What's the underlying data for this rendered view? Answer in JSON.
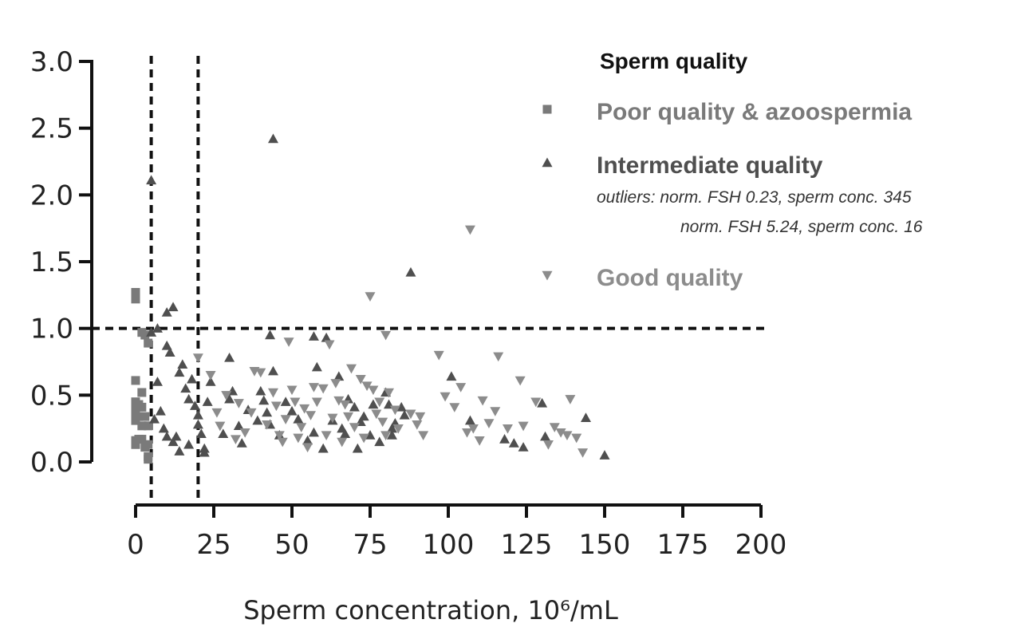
{
  "chart_data": {
    "type": "scatter",
    "title": "",
    "xlabel": "Sperm concentration, 10⁶/mL",
    "ylabel": "",
    "xlim": [
      0,
      200
    ],
    "ylim": [
      0,
      3.0
    ],
    "x_ticks": [
      "0",
      "25",
      "50",
      "75",
      "100",
      "125",
      "150",
      "175",
      "200"
    ],
    "y_ticks": [
      "0.0",
      "0.5",
      "1.0",
      "1.5",
      "2.0",
      "2.5",
      "3.0"
    ],
    "reference_lines": [
      {
        "axis": "x",
        "value": 5,
        "style": "dashed"
      },
      {
        "axis": "x",
        "value": 20,
        "style": "dashed"
      },
      {
        "axis": "y",
        "value": 1.0,
        "style": "dashed"
      }
    ],
    "legend": {
      "title": "Sperm quality",
      "position": "top-right",
      "notes": [
        "outliers: norm. FSH 0.23, sperm conc. 345",
        "norm. FSH 5.24, sperm conc. 16"
      ]
    },
    "series": [
      {
        "name": "Poor quality & azoospermia",
        "marker": "square",
        "color": "#7a7a7a",
        "points": [
          [
            0,
            1.27
          ],
          [
            0,
            1.22
          ],
          [
            0,
            0.61
          ],
          [
            0,
            0.45
          ],
          [
            0,
            0.41
          ],
          [
            0,
            0.36
          ],
          [
            0,
            0.31
          ],
          [
            0,
            0.16
          ],
          [
            0,
            0.13
          ],
          [
            1,
            0.43
          ],
          [
            1,
            0.34
          ],
          [
            1,
            0.17
          ],
          [
            2,
            0.97
          ],
          [
            2,
            0.52
          ],
          [
            2,
            0.41
          ],
          [
            2,
            0.27
          ],
          [
            2,
            0.17
          ],
          [
            3,
            0.95
          ],
          [
            3,
            0.34
          ],
          [
            3,
            0.11
          ],
          [
            4,
            0.89
          ],
          [
            4,
            0.27
          ],
          [
            4,
            0.13
          ],
          [
            4,
            0.04
          ],
          [
            4,
            0.02
          ]
        ]
      },
      {
        "name": "Intermediate quality",
        "marker": "triangle-up",
        "color": "#4f4f4f",
        "points": [
          [
            5,
            2.11
          ],
          [
            44,
            2.42
          ],
          [
            88,
            1.42
          ],
          [
            10,
            1.12
          ],
          [
            12,
            1.16
          ],
          [
            5,
            0.97
          ],
          [
            7,
            1.0
          ],
          [
            10,
            0.87
          ],
          [
            11,
            0.82
          ],
          [
            14,
            0.67
          ],
          [
            15,
            0.73
          ],
          [
            16,
            0.55
          ],
          [
            17,
            0.47
          ],
          [
            18,
            0.62
          ],
          [
            19,
            0.42
          ],
          [
            20,
            0.35
          ],
          [
            20,
            0.28
          ],
          [
            21,
            0.21
          ],
          [
            22,
            0.1
          ],
          [
            22,
            0.07
          ],
          [
            23,
            0.45
          ],
          [
            6,
            0.32
          ],
          [
            7,
            0.6
          ],
          [
            8,
            0.38
          ],
          [
            9,
            0.25
          ],
          [
            10,
            0.19
          ],
          [
            12,
            0.15
          ],
          [
            13,
            0.19
          ],
          [
            14,
            0.08
          ],
          [
            17,
            0.13
          ],
          [
            24,
            0.6
          ],
          [
            28,
            0.21
          ],
          [
            30,
            0.47
          ],
          [
            30,
            0.78
          ],
          [
            31,
            0.53
          ],
          [
            33,
            0.27
          ],
          [
            34,
            0.14
          ],
          [
            36,
            0.39
          ],
          [
            39,
            0.31
          ],
          [
            40,
            0.53
          ],
          [
            41,
            0.46
          ],
          [
            42,
            0.37
          ],
          [
            43,
            0.95
          ],
          [
            43,
            0.28
          ],
          [
            44,
            0.68
          ],
          [
            46,
            0.2
          ],
          [
            48,
            0.45
          ],
          [
            50,
            0.38
          ],
          [
            52,
            0.32
          ],
          [
            55,
            0.16
          ],
          [
            57,
            0.94
          ],
          [
            57,
            0.22
          ],
          [
            58,
            0.71
          ],
          [
            60,
            0.1
          ],
          [
            61,
            0.93
          ],
          [
            63,
            0.31
          ],
          [
            65,
            0.64
          ],
          [
            66,
            0.25
          ],
          [
            67,
            0.21
          ],
          [
            68,
            0.47
          ],
          [
            70,
            0.41
          ],
          [
            71,
            0.1
          ],
          [
            72,
            0.3
          ],
          [
            73,
            0.34
          ],
          [
            75,
            0.2
          ],
          [
            76,
            0.43
          ],
          [
            78,
            0.15
          ],
          [
            80,
            0.52
          ],
          [
            81,
            0.43
          ],
          [
            82,
            0.25
          ],
          [
            82,
            0.2
          ],
          [
            83,
            0.29
          ],
          [
            85,
            0.41
          ],
          [
            86,
            0.35
          ],
          [
            101,
            0.64
          ],
          [
            107,
            0.31
          ],
          [
            118,
            0.17
          ],
          [
            121,
            0.14
          ],
          [
            124,
            0.11
          ],
          [
            130,
            0.44
          ],
          [
            131,
            0.19
          ],
          [
            144,
            0.33
          ],
          [
            150,
            0.05
          ]
        ]
      },
      {
        "name": "Good quality",
        "marker": "triangle-down",
        "color": "#8c8c8c",
        "points": [
          [
            107,
            1.74
          ],
          [
            75,
            1.24
          ],
          [
            20,
            0.78
          ],
          [
            24,
            0.65
          ],
          [
            26,
            0.37
          ],
          [
            27,
            0.27
          ],
          [
            29,
            0.5
          ],
          [
            32,
            0.17
          ],
          [
            33,
            0.44
          ],
          [
            35,
            0.22
          ],
          [
            37,
            0.37
          ],
          [
            38,
            0.68
          ],
          [
            40,
            0.67
          ],
          [
            42,
            0.28
          ],
          [
            44,
            0.52
          ],
          [
            45,
            0.42
          ],
          [
            46,
            0.2
          ],
          [
            47,
            0.15
          ],
          [
            48,
            0.32
          ],
          [
            49,
            0.9
          ],
          [
            50,
            0.54
          ],
          [
            51,
            0.45
          ],
          [
            52,
            0.18
          ],
          [
            53,
            0.26
          ],
          [
            54,
            0.4
          ],
          [
            55,
            0.11
          ],
          [
            56,
            0.35
          ],
          [
            57,
            0.56
          ],
          [
            58,
            0.45
          ],
          [
            60,
            0.55
          ],
          [
            61,
            0.2
          ],
          [
            62,
            0.88
          ],
          [
            63,
            0.33
          ],
          [
            64,
            0.59
          ],
          [
            65,
            0.46
          ],
          [
            66,
            0.15
          ],
          [
            67,
            0.43
          ],
          [
            68,
            0.34
          ],
          [
            69,
            0.7
          ],
          [
            70,
            0.26
          ],
          [
            72,
            0.62
          ],
          [
            73,
            0.18
          ],
          [
            74,
            0.57
          ],
          [
            76,
            0.54
          ],
          [
            77,
            0.36
          ],
          [
            78,
            0.45
          ],
          [
            79,
            0.3
          ],
          [
            80,
            0.95
          ],
          [
            80,
            0.2
          ],
          [
            81,
            0.52
          ],
          [
            83,
            0.39
          ],
          [
            84,
            0.25
          ],
          [
            88,
            0.36
          ],
          [
            90,
            0.28
          ],
          [
            91,
            0.34
          ],
          [
            92,
            0.2
          ],
          [
            97,
            0.8
          ],
          [
            99,
            0.49
          ],
          [
            102,
            0.41
          ],
          [
            104,
            0.56
          ],
          [
            106,
            0.22
          ],
          [
            108,
            0.25
          ],
          [
            110,
            0.16
          ],
          [
            111,
            0.46
          ],
          [
            113,
            0.29
          ],
          [
            115,
            0.38
          ],
          [
            116,
            0.79
          ],
          [
            119,
            0.25
          ],
          [
            123,
            0.61
          ],
          [
            124,
            0.27
          ],
          [
            128,
            0.45
          ],
          [
            132,
            0.13
          ],
          [
            134,
            0.26
          ],
          [
            136,
            0.22
          ],
          [
            138,
            0.2
          ],
          [
            139,
            0.47
          ],
          [
            141,
            0.18
          ],
          [
            143,
            0.07
          ]
        ]
      }
    ]
  }
}
